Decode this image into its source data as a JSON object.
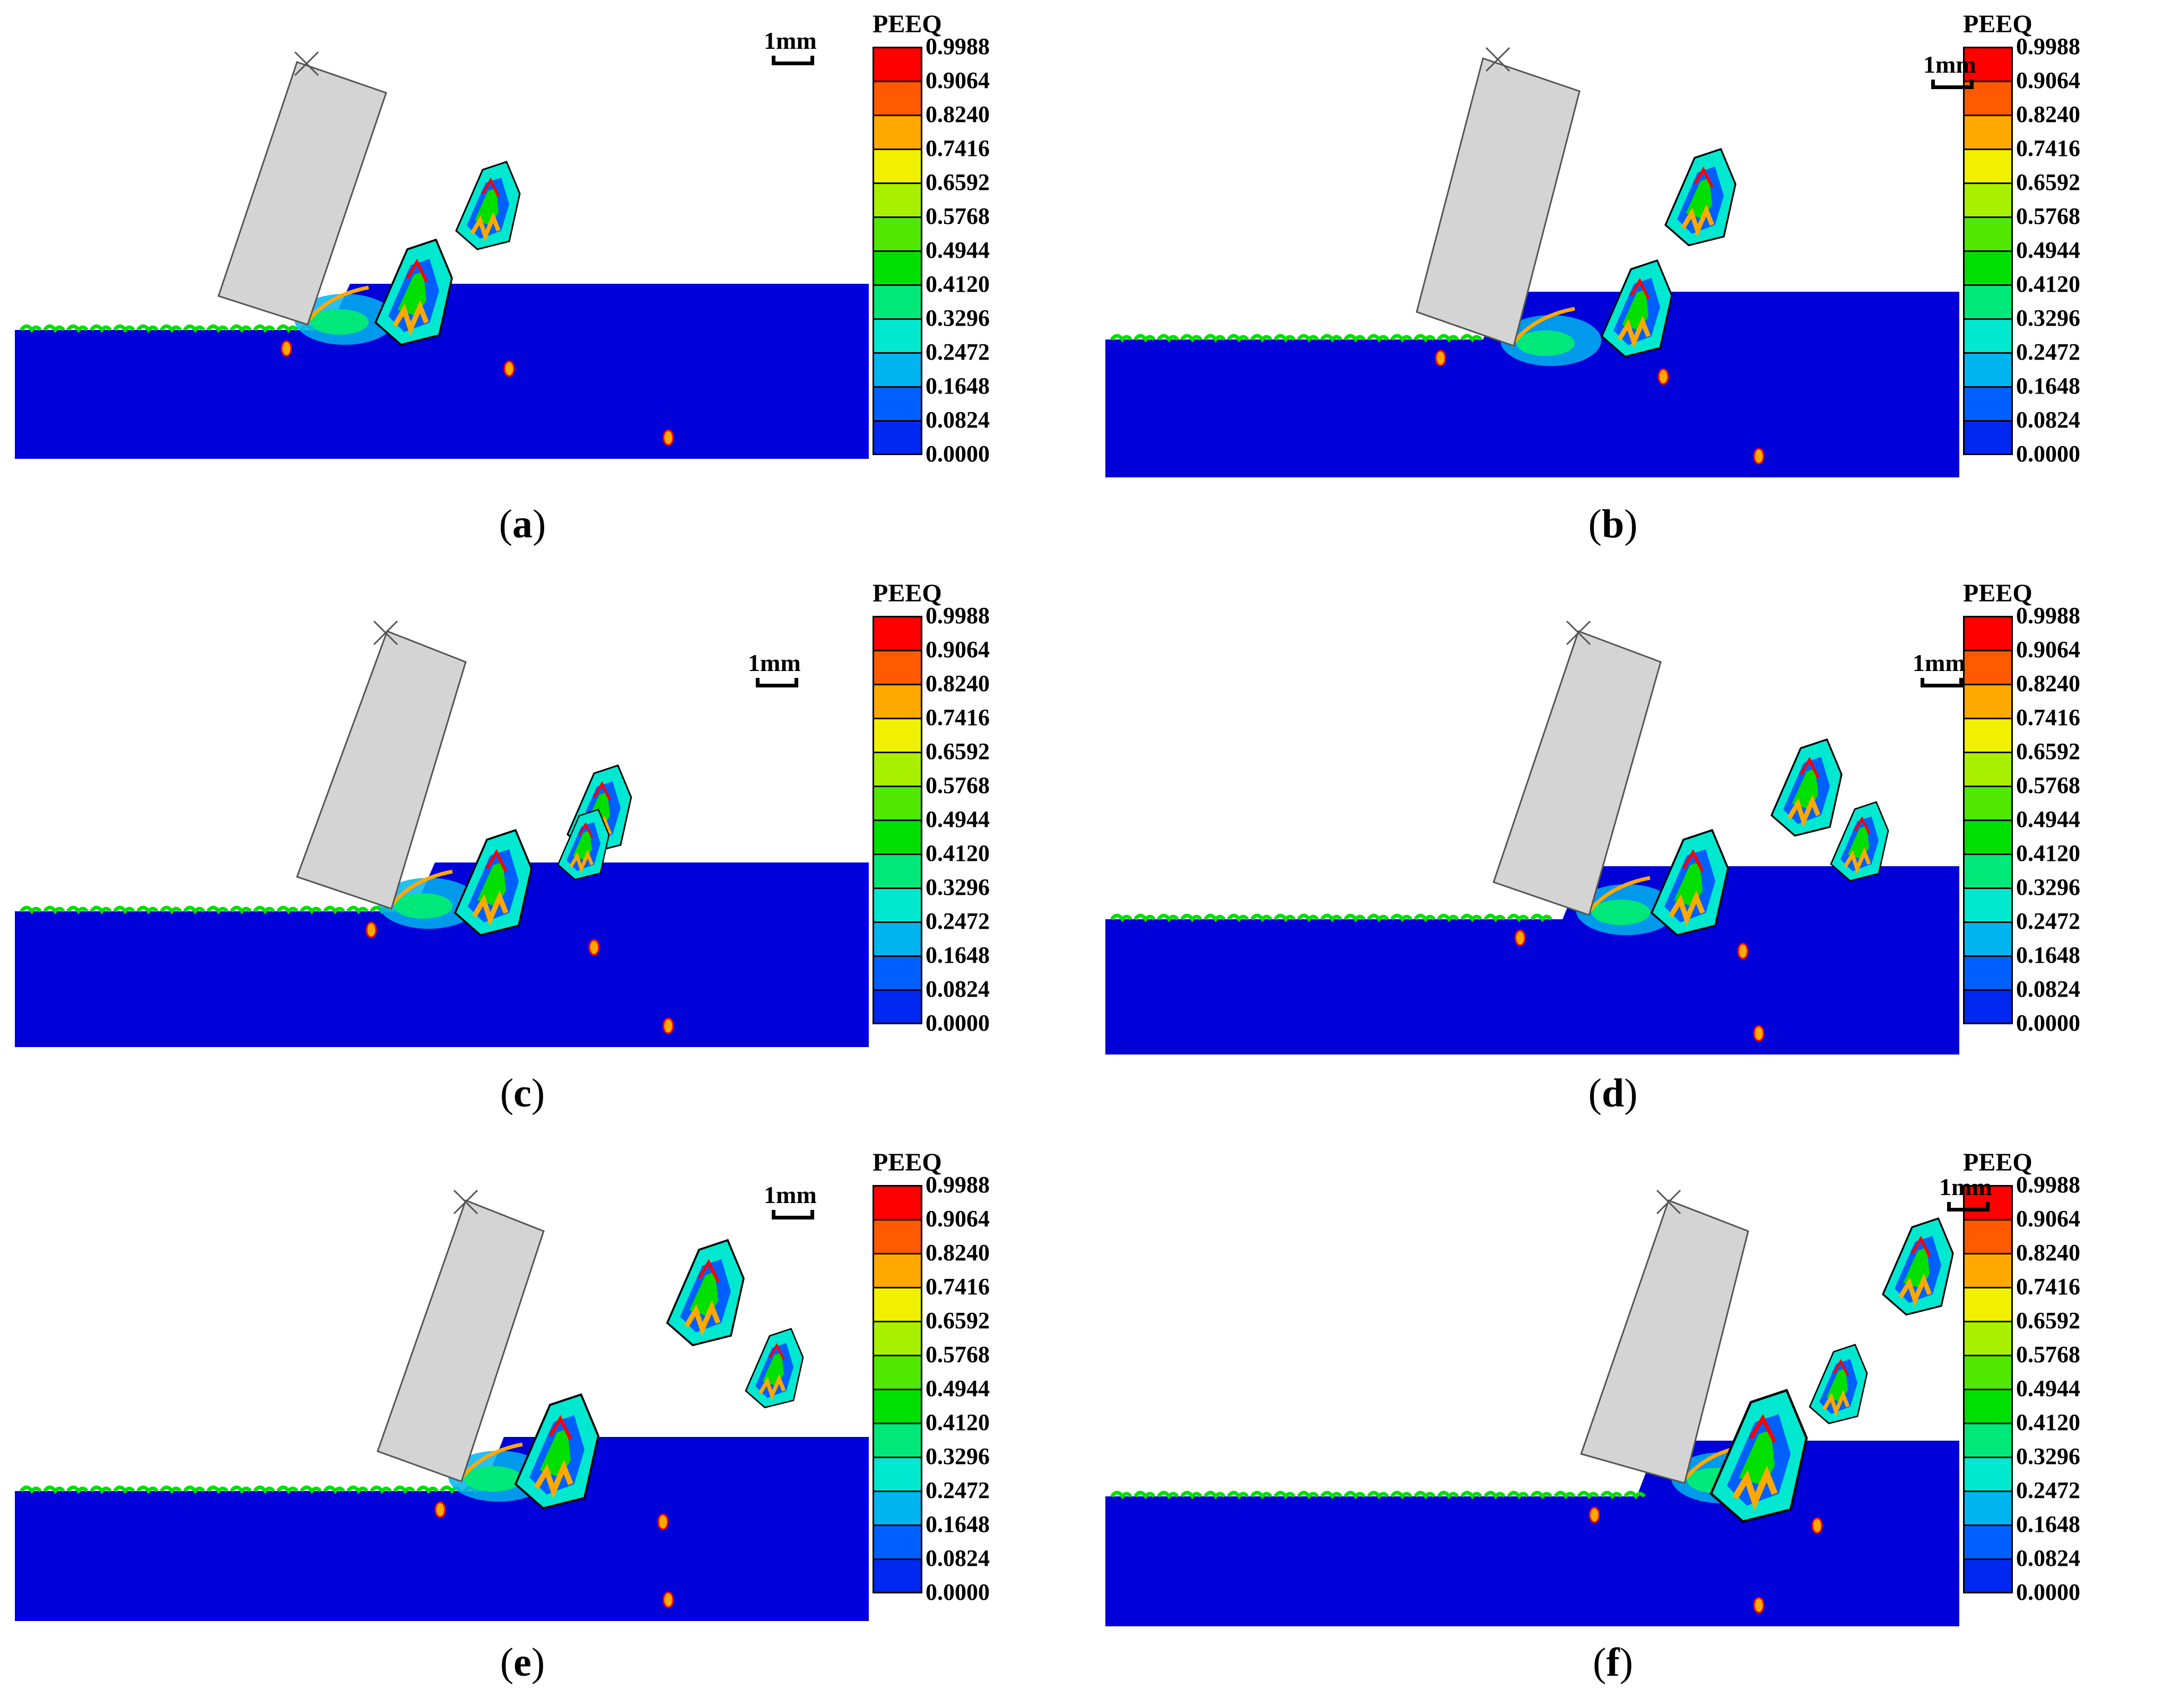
{
  "legend": {
    "title": "PEEQ",
    "ticks": [
      "0.9988",
      "0.9064",
      "0.8240",
      "0.7416",
      "0.6592",
      "0.5768",
      "0.4944",
      "0.4120",
      "0.3296",
      "0.2472",
      "0.1648",
      "0.0824",
      "0.0000"
    ],
    "colors": [
      "#ff0000",
      "#ff5a00",
      "#ffa800",
      "#f0f000",
      "#a8f000",
      "#50e800",
      "#00e000",
      "#00e87a",
      "#00e8d0",
      "#00b4f0",
      "#0060ff",
      "#0028f0"
    ]
  },
  "scale_label": "1mm",
  "workpiece_color": "#0000d8",
  "tool_color": "#d4d4d4",
  "panels": [
    {
      "caption": "a",
      "open": "(",
      "close": ")"
    },
    {
      "caption": "b",
      "open": "(",
      "close": ")"
    },
    {
      "caption": "c",
      "open": "(",
      "close": ")"
    },
    {
      "caption": "d",
      "open": "(",
      "close": ")"
    },
    {
      "caption": "e",
      "open": "(",
      "close": ")"
    },
    {
      "caption": "f",
      "open": "(",
      "close": ")"
    }
  ]
}
